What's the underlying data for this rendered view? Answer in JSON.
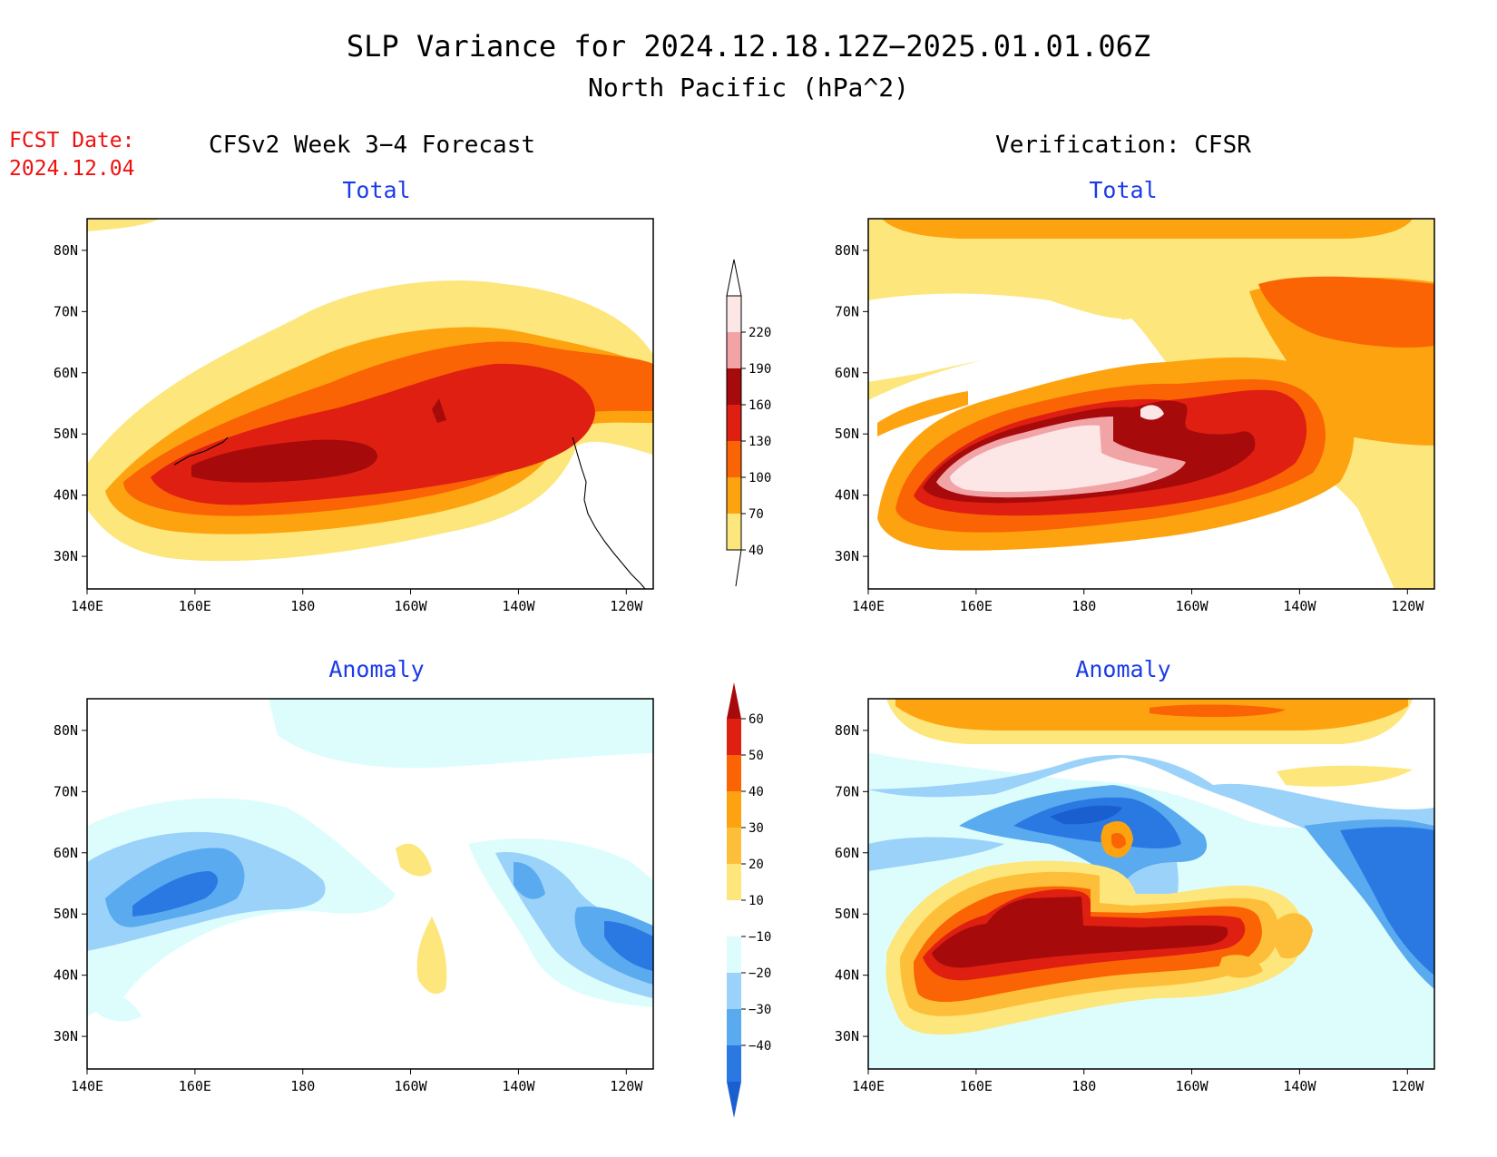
{
  "title": {
    "line1": "SLP Variance for 2024.12.18.12Z−2025.01.01.06Z",
    "line2": "North Pacific (hPa^2)"
  },
  "fcst": {
    "label": "FCST Date:",
    "date": "2024.12.04"
  },
  "columns": {
    "left": "CFSv2 Week 3−4 Forecast",
    "right": "Verification: CFSR"
  },
  "panels": [
    {
      "id": "fcst-total",
      "subtitle": "Total"
    },
    {
      "id": "verif-total",
      "subtitle": "Total"
    },
    {
      "id": "fcst-anomaly",
      "subtitle": "Anomaly"
    },
    {
      "id": "verif-anomaly",
      "subtitle": "Anomaly"
    }
  ],
  "axes": {
    "lon_labels": [
      "140E",
      "160E",
      "180",
      "160W",
      "140W",
      "120W"
    ],
    "lat_labels": [
      "80N",
      "70N",
      "60N",
      "50N",
      "40N",
      "30N"
    ]
  },
  "colorbars": {
    "total": {
      "labels": [
        "220",
        "190",
        "160",
        "130",
        "100",
        "70",
        "40"
      ],
      "colors": [
        "#fde7e6",
        "#f1a3a6",
        "#a60a0a",
        "#de1f11",
        "#fa6404",
        "#fda310",
        "#fde67b"
      ]
    },
    "anomaly": {
      "labels": [
        "60",
        "50",
        "40",
        "30",
        "20",
        "10",
        "−10",
        "−20",
        "−30",
        "−40"
      ],
      "colors": [
        "#a60a0a",
        "#de1f11",
        "#fa6404",
        "#fda310",
        "#fdbf3a",
        "#fde67b",
        "#ffffff",
        "#ddfdfd",
        "#9bd2f9",
        "#5aaaf0",
        "#2a79e3",
        "#1a5fd0"
      ]
    }
  }
}
